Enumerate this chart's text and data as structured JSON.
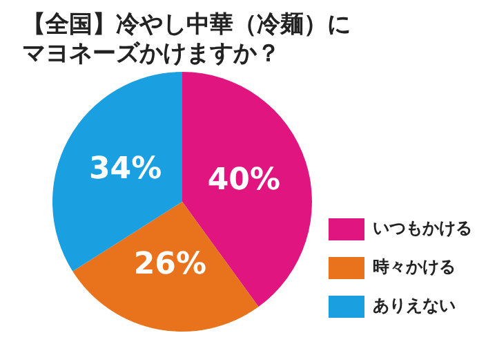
{
  "chart_data": {
    "type": "pie",
    "title": "【全国】冷やし中華（冷麺）にマヨネーズかけますか？",
    "categories": [
      "いつもかける",
      "時々かける",
      "ありえない"
    ],
    "values": [
      40,
      26,
      34
    ],
    "colors": [
      "#e0157f",
      "#e8731c",
      "#1a9fe0"
    ],
    "value_labels": [
      "40%",
      "26%",
      "34%"
    ],
    "legend": "bottom right"
  }
}
